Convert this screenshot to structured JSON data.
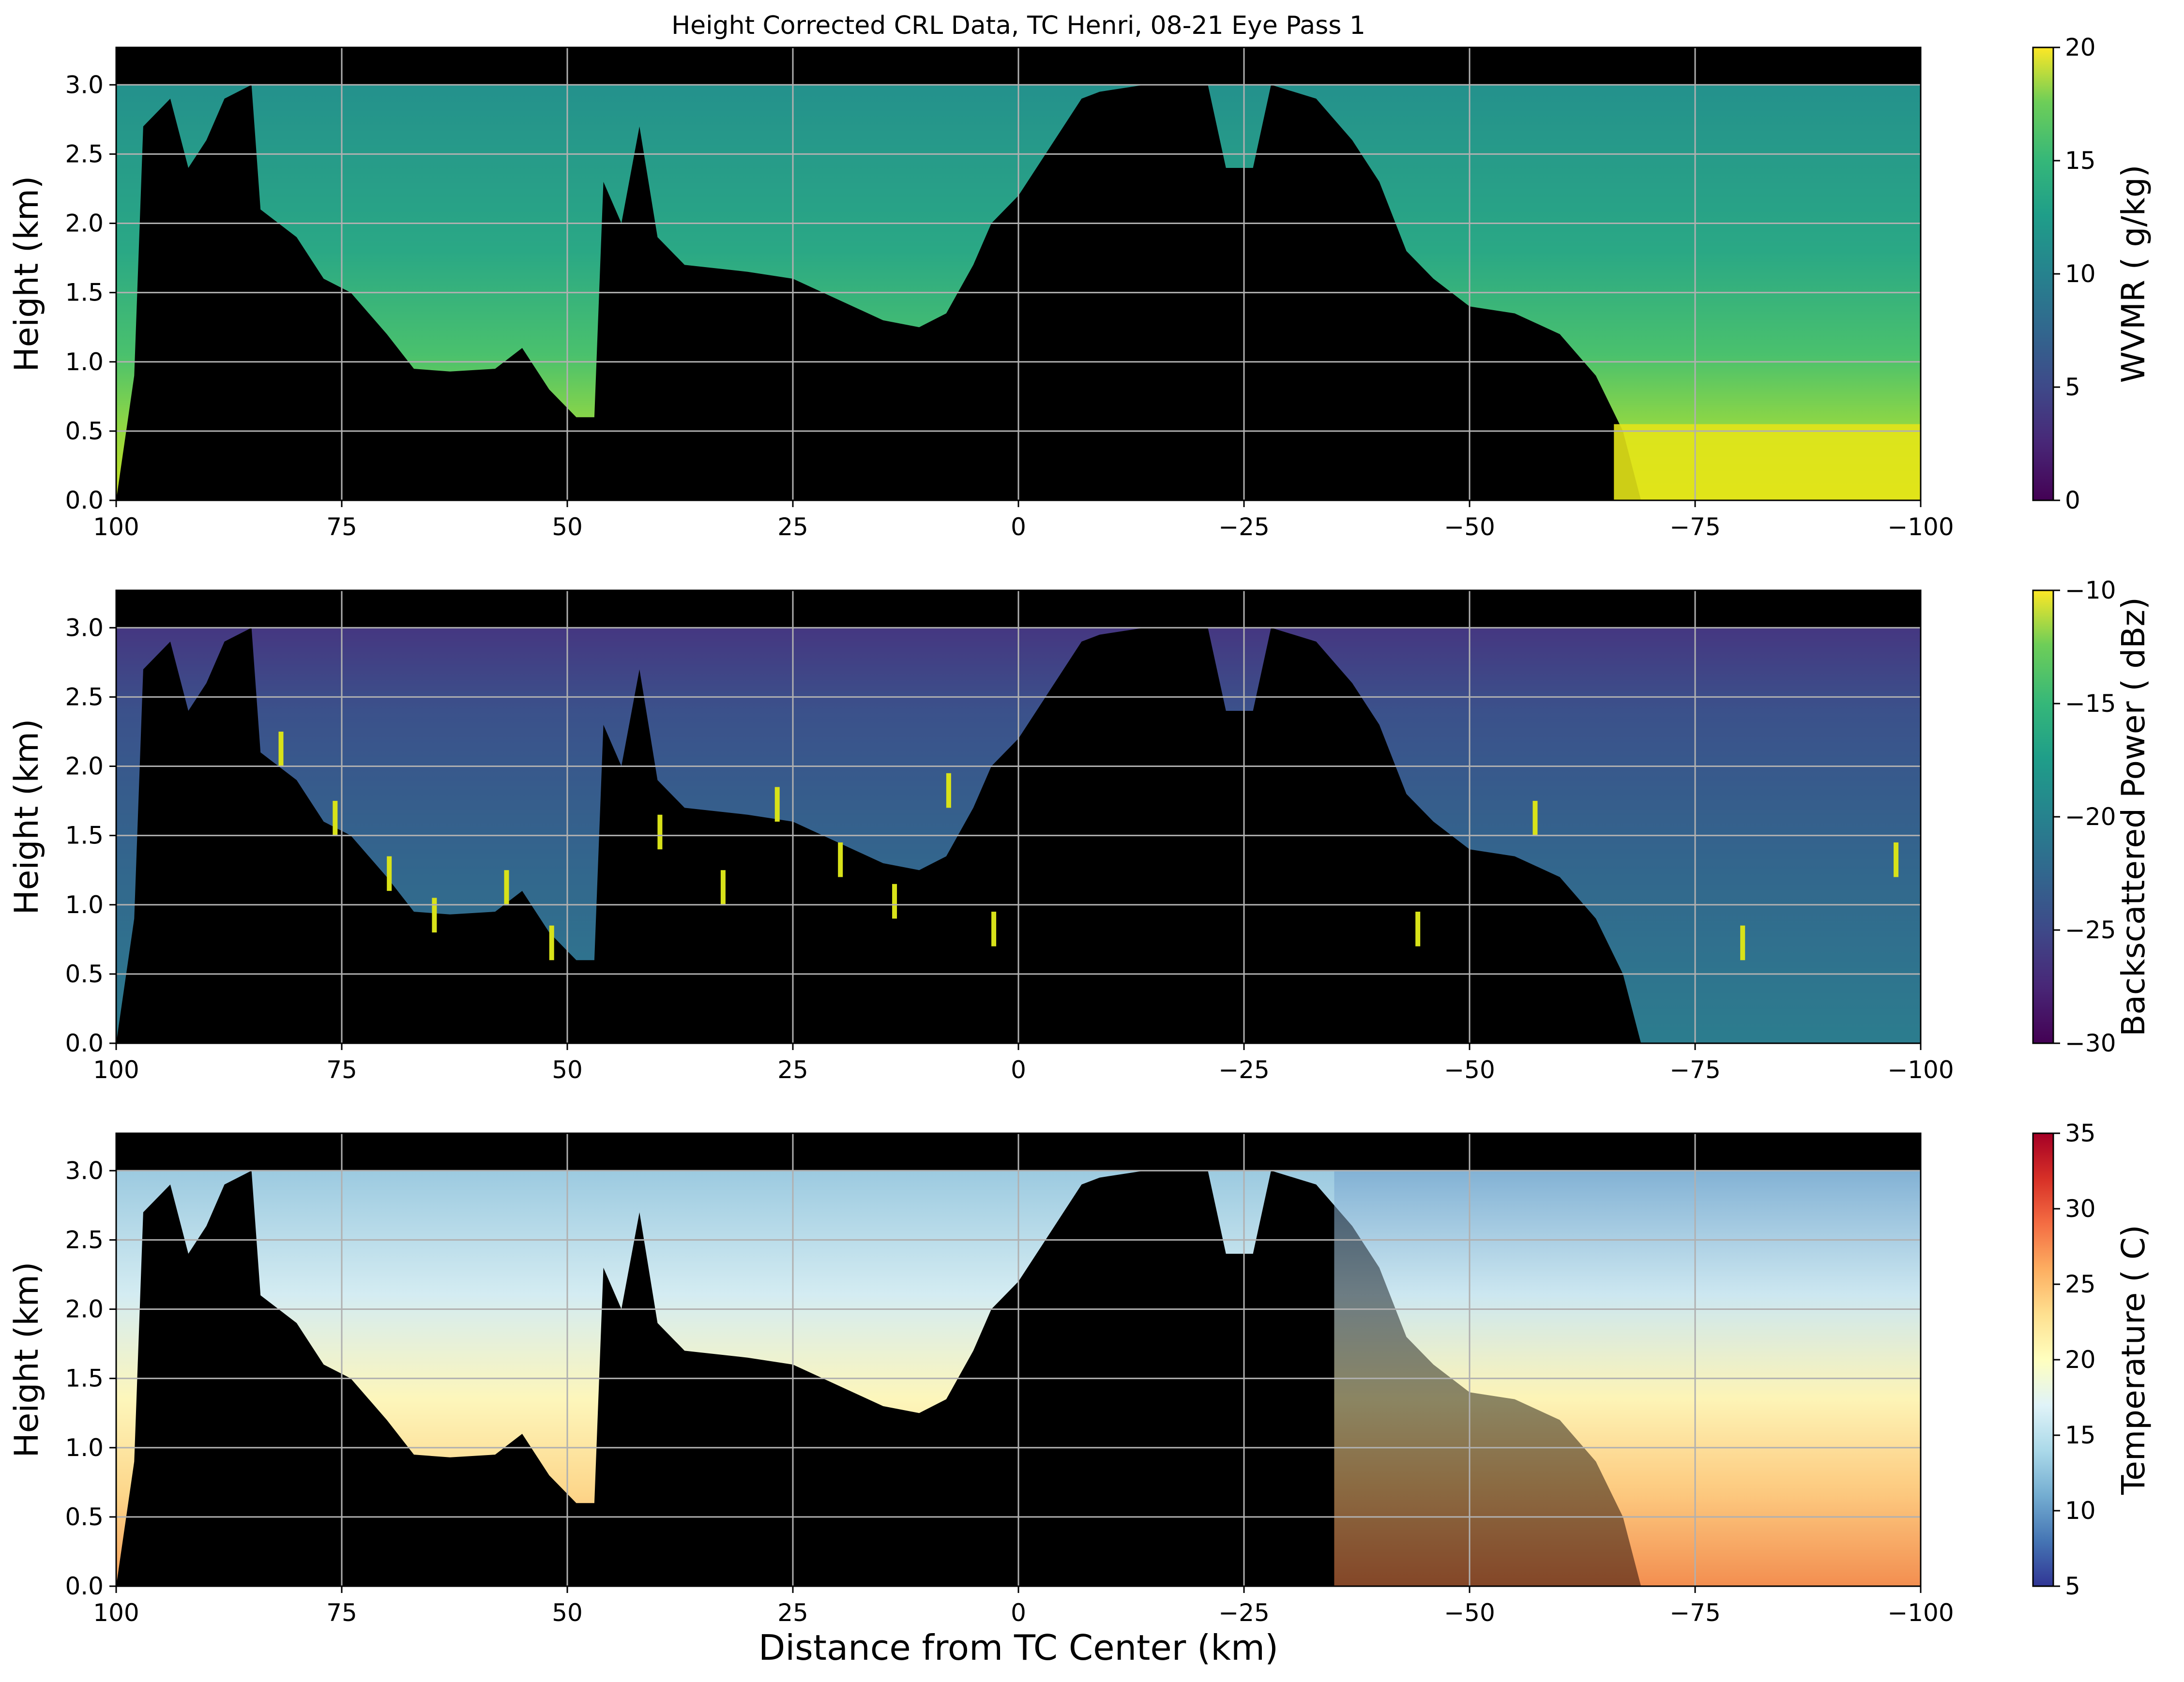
{
  "figure": {
    "title": "Height Corrected CRL Data, TC Henri, 08-21 Eye Pass 1",
    "xlabel": "Distance from TC Center (km)"
  },
  "chart_data": [
    {
      "type": "heatmap",
      "variable": "WVMR",
      "ylabel": "Height (km)",
      "colorbar_label": "WVMR ( g/kg)",
      "colormap": "viridis",
      "clim": [
        0,
        20
      ],
      "colorbar_ticks": [
        "0",
        "5",
        "10",
        "15",
        "20"
      ],
      "xlim": [
        100,
        -100
      ],
      "ylim": [
        0,
        3.27
      ],
      "x_ticks": [
        "100",
        "75",
        "50",
        "25",
        "0",
        "−25",
        "−50",
        "−75",
        "−100"
      ],
      "y_ticks": [
        "0.0",
        "0.5",
        "1.0",
        "1.5",
        "2.0",
        "2.5",
        "3.0"
      ],
      "grid": true,
      "value_profile": {
        "low_level": 17,
        "mid_level": 12.5,
        "upper_level": 11,
        "boundary_layer_far_side": 19.5
      }
    },
    {
      "type": "heatmap",
      "variable": "Backscattered Power",
      "ylabel": "Height (km)",
      "colorbar_label": "Backscattered Power ( dBz)",
      "colormap": "viridis",
      "clim": [
        -30,
        -10
      ],
      "colorbar_ticks": [
        "−30",
        "−25",
        "−20",
        "−15",
        "−10"
      ],
      "xlim": [
        100,
        -100
      ],
      "ylim": [
        0,
        3.27
      ],
      "x_ticks": [
        "100",
        "75",
        "50",
        "25",
        "0",
        "−25",
        "−50",
        "−75",
        "−100"
      ],
      "y_ticks": [
        "0.0",
        "0.5",
        "1.0",
        "1.5",
        "2.0",
        "2.5",
        "3.0"
      ],
      "grid": true,
      "value_profile": {
        "background": -24,
        "upper_level": -27,
        "cloud_features": -11
      }
    },
    {
      "type": "heatmap",
      "variable": "Temperature",
      "ylabel": "Height (km)",
      "colorbar_label": "Temperature ( C)",
      "colormap": "RdYlBu_r",
      "clim": [
        5,
        35
      ],
      "colorbar_ticks": [
        "5",
        "10",
        "15",
        "20",
        "25",
        "30",
        "35"
      ],
      "xlim": [
        100,
        -100
      ],
      "ylim": [
        0,
        3.27
      ],
      "x_ticks": [
        "100",
        "75",
        "50",
        "25",
        "0",
        "−25",
        "−50",
        "−75",
        "−100"
      ],
      "y_ticks": [
        "0.0",
        "0.5",
        "1.0",
        "1.5",
        "2.0",
        "2.5",
        "3.0"
      ],
      "grid": true,
      "value_profile": {
        "surface": 24,
        "mid_level": 19,
        "upper_level": 14,
        "far_side_top": 12
      }
    }
  ],
  "colors": {
    "background": "#000000",
    "grid": "#b0b0b0"
  }
}
